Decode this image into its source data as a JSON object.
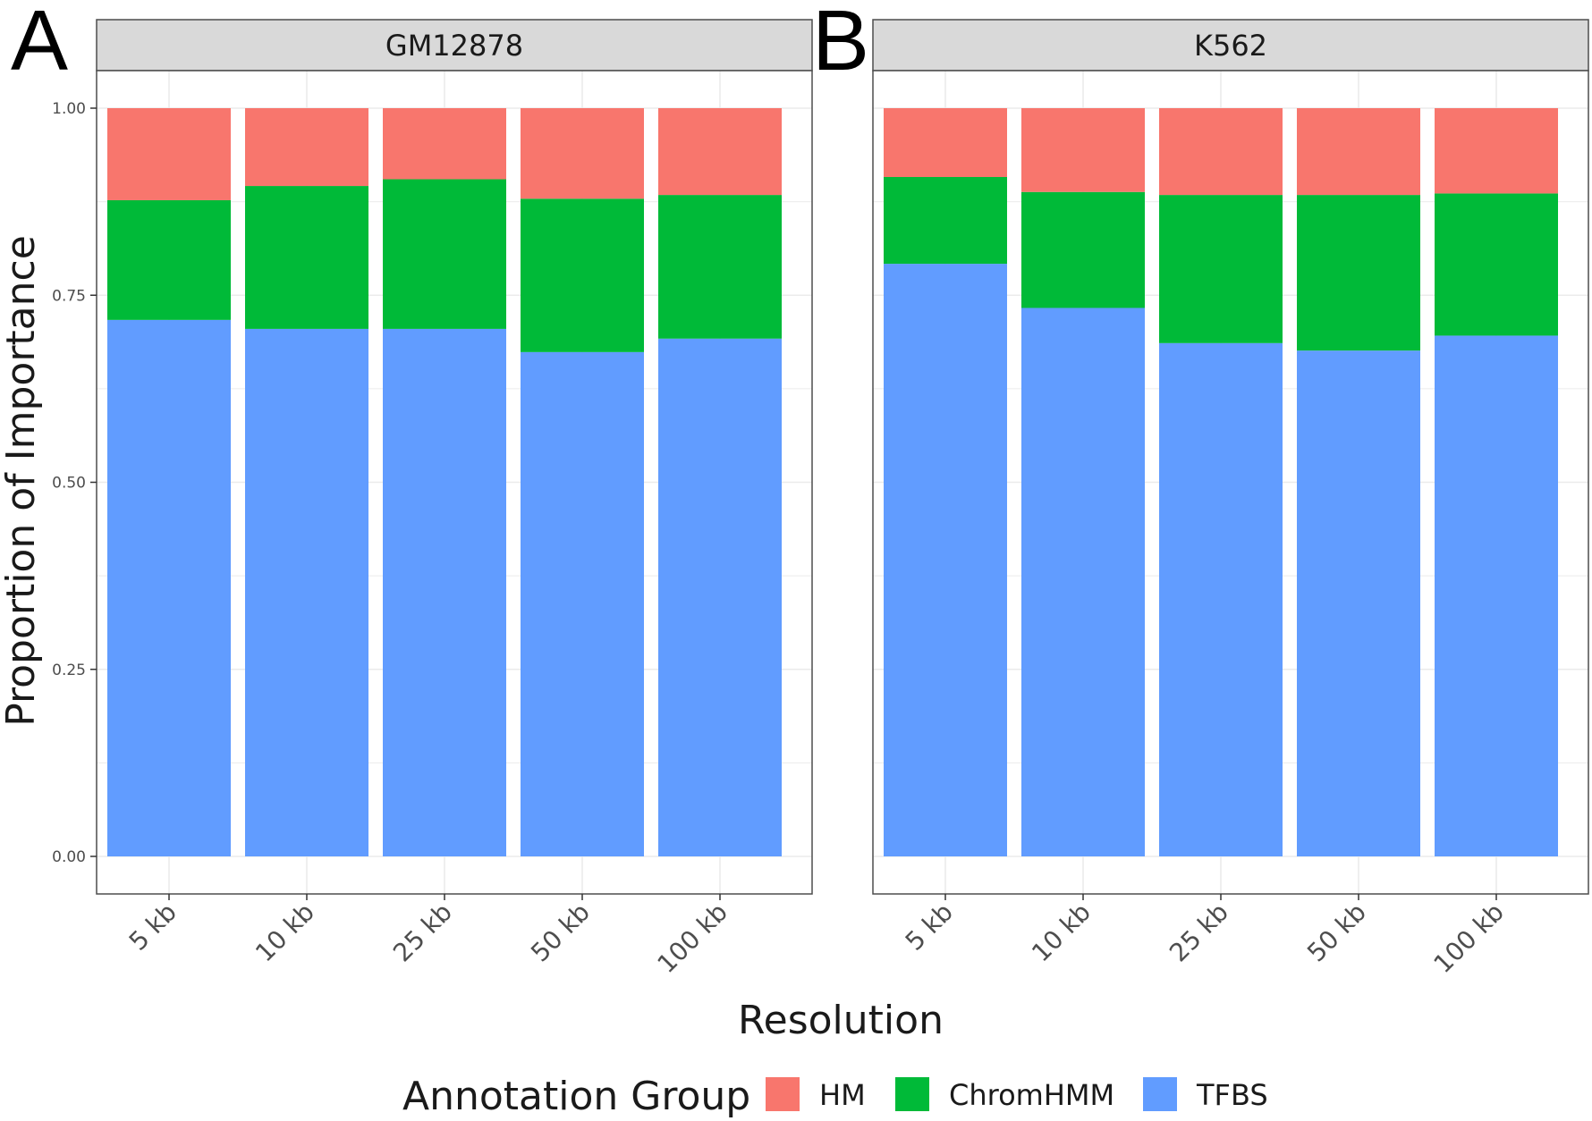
{
  "chart_data": {
    "type": "bar",
    "stacked": true,
    "ylabel": "Proportion of Importance",
    "xlabel": "Resolution",
    "ylim": [
      0,
      1
    ],
    "yticks": [
      "0.00",
      "0.25",
      "0.50",
      "0.75",
      "1.00"
    ],
    "grid": true,
    "legend": {
      "title": "Annotation Group",
      "position": "bottom",
      "items": [
        {
          "name": "HM",
          "color": "#F8766D"
        },
        {
          "name": "ChromHMM",
          "color": "#00BA38"
        },
        {
          "name": "TFBS",
          "color": "#619CFF"
        }
      ]
    },
    "panels": [
      {
        "letter": "A",
        "strip": "GM12878",
        "categories": [
          "5 kb",
          "10 kb",
          "25 kb",
          "50 kb",
          "100 kb"
        ],
        "series": [
          {
            "name": "TFBS",
            "values": [
              0.717,
              0.705,
              0.705,
              0.674,
              0.692
            ]
          },
          {
            "name": "ChromHMM",
            "values": [
              0.16,
              0.191,
              0.2,
              0.205,
              0.192
            ]
          },
          {
            "name": "HM",
            "values": [
              0.123,
              0.104,
              0.095,
              0.121,
              0.116
            ]
          }
        ]
      },
      {
        "letter": "B",
        "strip": "K562",
        "categories": [
          "5 kb",
          "10 kb",
          "25 kb",
          "50 kb",
          "100 kb"
        ],
        "series": [
          {
            "name": "TFBS",
            "values": [
              0.792,
              0.733,
              0.686,
              0.676,
              0.696
            ]
          },
          {
            "name": "ChromHMM",
            "values": [
              0.116,
              0.155,
              0.198,
              0.208,
              0.19
            ]
          },
          {
            "name": "HM",
            "values": [
              0.092,
              0.112,
              0.116,
              0.116,
              0.114
            ]
          }
        ]
      }
    ]
  }
}
